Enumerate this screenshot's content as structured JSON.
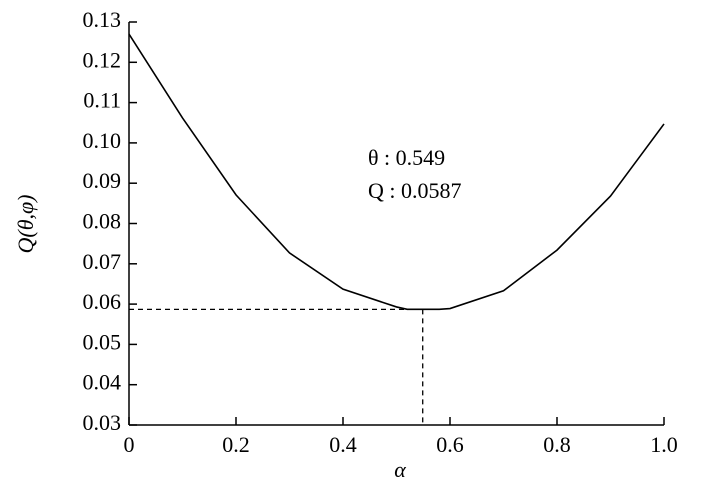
{
  "chart_data": {
    "type": "line",
    "xlabel": "α",
    "ylabel": "Q(θ,φ)",
    "x": [
      0,
      0.1,
      0.2,
      0.3,
      0.4,
      0.5,
      0.52,
      0.58,
      0.6,
      0.7,
      0.8,
      0.9,
      1.0
    ],
    "values": [
      0.127,
      0.1062,
      0.0871,
      0.0727,
      0.0637,
      0.0593,
      0.0587,
      0.0587,
      0.0589,
      0.0633,
      0.0734,
      0.0868,
      0.1047
    ],
    "color": "#000000",
    "xlim": [
      0,
      1.0
    ],
    "xticks": [
      0,
      0.2,
      0.4,
      0.6,
      0.8,
      {
        "value": 1.0,
        "label": "1.0"
      }
    ],
    "ylim": [
      0.03,
      0.13
    ],
    "yticks": [
      0.03,
      0.04,
      0.05,
      0.06,
      0.07,
      0.08,
      0.09,
      {
        "value": 0.1,
        "label": "0.10"
      },
      0.11,
      0.12,
      0.13
    ],
    "annotation": {
      "x": 0.549,
      "y": 0.0587,
      "lines": [
        "θ : 0.549",
        "Q : 0.0587"
      ]
    }
  }
}
